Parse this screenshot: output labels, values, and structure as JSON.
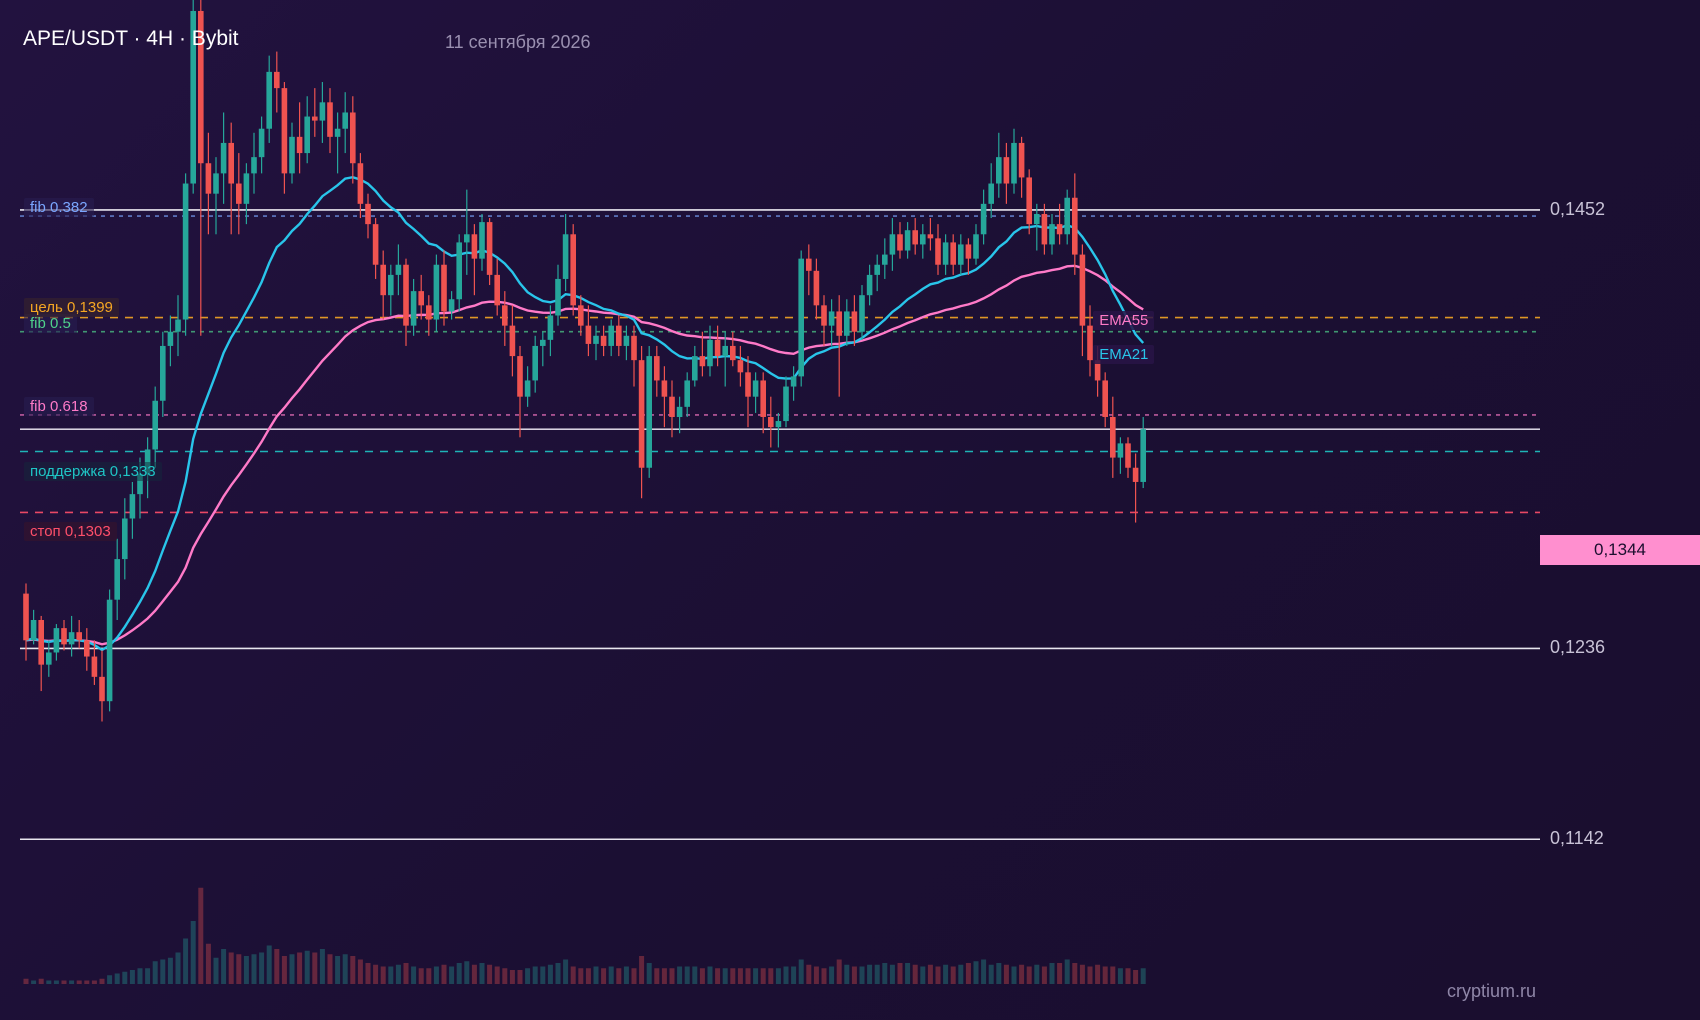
{
  "header": {
    "title": "APE/USDT · 4H · Bybit",
    "date": "11 сентября 2026"
  },
  "watermark": "cryptium.ru",
  "colors": {
    "up": "#26a69a",
    "down": "#ef5350",
    "ema_fast": "#29c5ea",
    "ema_slow": "#ff7ac8",
    "fib": "#7aa6ff",
    "target": "#f5a623",
    "support": "#1fc5c5",
    "stop": "#ff4f6a"
  },
  "chart_data": {
    "type": "candlestick",
    "title": "APE/USDT · 4H · Bybit",
    "ylim": [
      0.1117,
      0.1516
    ],
    "grid": false,
    "levels": [
      {
        "label": "0,1452",
        "value": 0.1452,
        "style": "solid"
      },
      {
        "label": "0,1236",
        "value": 0.1236,
        "style": "solid"
      },
      {
        "label": "0,1142",
        "value": 0.1142,
        "style": "solid"
      }
    ],
    "last_price": {
      "label": "0,1344",
      "value": 0.1344
    },
    "annotations": [
      {
        "label": "fib 0.382",
        "value": 0.1449,
        "kind": "fib"
      },
      {
        "label": "fib 0.5",
        "value": 0.1392,
        "kind": "fib"
      },
      {
        "label": "fib 0.618",
        "value": 0.1351,
        "kind": "fib"
      },
      {
        "label": "цель 0,1399",
        "value": 0.1399,
        "kind": "target"
      },
      {
        "label": "поддержка 0,1333",
        "value": 0.1333,
        "kind": "support"
      },
      {
        "label": "стоп 0,1303",
        "value": 0.1303,
        "kind": "stop"
      }
    ],
    "indicators": [
      {
        "name": "EMA21",
        "kind": "ema_fast"
      },
      {
        "name": "EMA55",
        "kind": "ema_slow"
      }
    ],
    "ohlc": [
      [
        0.1263,
        0.1268,
        0.123,
        0.124
      ],
      [
        0.124,
        0.1255,
        0.1238,
        0.125
      ],
      [
        0.125,
        0.1252,
        0.1215,
        0.1228
      ],
      [
        0.1228,
        0.124,
        0.1222,
        0.1234
      ],
      [
        0.1234,
        0.1248,
        0.123,
        0.1246
      ],
      [
        0.1246,
        0.125,
        0.1235,
        0.1238
      ],
      [
        0.1238,
        0.1252,
        0.1232,
        0.1244
      ],
      [
        0.1244,
        0.125,
        0.1236,
        0.124
      ],
      [
        0.124,
        0.1246,
        0.1225,
        0.1232
      ],
      [
        0.1232,
        0.124,
        0.1218,
        0.1222
      ],
      [
        0.1222,
        0.1235,
        0.12,
        0.121
      ],
      [
        0.121,
        0.1265,
        0.1205,
        0.126
      ],
      [
        0.126,
        0.129,
        0.125,
        0.128
      ],
      [
        0.128,
        0.131,
        0.127,
        0.13
      ],
      [
        0.13,
        0.1318,
        0.129,
        0.1312
      ],
      [
        0.1312,
        0.133,
        0.13,
        0.1322
      ],
      [
        0.1322,
        0.134,
        0.131,
        0.1334
      ],
      [
        0.1334,
        0.1365,
        0.1325,
        0.1358
      ],
      [
        0.1358,
        0.1392,
        0.135,
        0.1385
      ],
      [
        0.1385,
        0.14,
        0.1375,
        0.1392
      ],
      [
        0.1392,
        0.141,
        0.138,
        0.1398
      ],
      [
        0.1398,
        0.147,
        0.139,
        0.1465
      ],
      [
        0.1465,
        0.156,
        0.146,
        0.155
      ],
      [
        0.155,
        0.156,
        0.139,
        0.1475
      ],
      [
        0.1475,
        0.149,
        0.144,
        0.146
      ],
      [
        0.146,
        0.1478,
        0.144,
        0.147
      ],
      [
        0.147,
        0.15,
        0.1455,
        0.1485
      ],
      [
        0.1485,
        0.1495,
        0.144,
        0.1465
      ],
      [
        0.1465,
        0.148,
        0.144,
        0.1455
      ],
      [
        0.1455,
        0.1475,
        0.1445,
        0.147
      ],
      [
        0.147,
        0.149,
        0.146,
        0.1478
      ],
      [
        0.1478,
        0.1498,
        0.147,
        0.1492
      ],
      [
        0.1492,
        0.1528,
        0.1485,
        0.152
      ],
      [
        0.152,
        0.153,
        0.15,
        0.1512
      ],
      [
        0.1512,
        0.1515,
        0.146,
        0.147
      ],
      [
        0.147,
        0.1495,
        0.1465,
        0.1488
      ],
      [
        0.1488,
        0.1505,
        0.147,
        0.148
      ],
      [
        0.148,
        0.1508,
        0.1475,
        0.1498
      ],
      [
        0.1498,
        0.1512,
        0.1488,
        0.1496
      ],
      [
        0.1496,
        0.1515,
        0.1485,
        0.1505
      ],
      [
        0.1505,
        0.1512,
        0.148,
        0.1488
      ],
      [
        0.1488,
        0.15,
        0.147,
        0.1492
      ],
      [
        0.1492,
        0.151,
        0.148,
        0.15
      ],
      [
        0.15,
        0.1508,
        0.1465,
        0.1475
      ],
      [
        0.1475,
        0.148,
        0.1448,
        0.1455
      ],
      [
        0.1455,
        0.146,
        0.1438,
        0.1445
      ],
      [
        0.1445,
        0.1448,
        0.1418,
        0.1425
      ],
      [
        0.1425,
        0.1432,
        0.1398,
        0.141
      ],
      [
        0.141,
        0.1425,
        0.14,
        0.142
      ],
      [
        0.142,
        0.1435,
        0.141,
        0.1425
      ],
      [
        0.1425,
        0.1428,
        0.1385,
        0.1395
      ],
      [
        0.1395,
        0.1418,
        0.139,
        0.1412
      ],
      [
        0.1412,
        0.142,
        0.1398,
        0.1405
      ],
      [
        0.1405,
        0.141,
        0.139,
        0.1398
      ],
      [
        0.1398,
        0.143,
        0.1392,
        0.1425
      ],
      [
        0.1425,
        0.1432,
        0.1395,
        0.1402
      ],
      [
        0.1402,
        0.1412,
        0.1398,
        0.1408
      ],
      [
        0.1408,
        0.144,
        0.1402,
        0.1436
      ],
      [
        0.1436,
        0.1462,
        0.142,
        0.144
      ],
      [
        0.144,
        0.1445,
        0.141,
        0.1428
      ],
      [
        0.1428,
        0.145,
        0.1422,
        0.1446
      ],
      [
        0.1446,
        0.1448,
        0.1415,
        0.142
      ],
      [
        0.142,
        0.1428,
        0.14,
        0.1405
      ],
      [
        0.1405,
        0.1412,
        0.1385,
        0.1395
      ],
      [
        0.1395,
        0.1405,
        0.137,
        0.138
      ],
      [
        0.138,
        0.1385,
        0.134,
        0.136
      ],
      [
        0.136,
        0.1375,
        0.1355,
        0.1368
      ],
      [
        0.1368,
        0.139,
        0.1362,
        0.1385
      ],
      [
        0.1385,
        0.1392,
        0.1375,
        0.1388
      ],
      [
        0.1388,
        0.1405,
        0.138,
        0.14
      ],
      [
        0.14,
        0.1425,
        0.1395,
        0.1418
      ],
      [
        0.1418,
        0.145,
        0.1412,
        0.144
      ],
      [
        0.144,
        0.1445,
        0.14,
        0.1405
      ],
      [
        0.1405,
        0.141,
        0.139,
        0.1395
      ],
      [
        0.1395,
        0.1405,
        0.138,
        0.1386
      ],
      [
        0.1386,
        0.1395,
        0.1378,
        0.139
      ],
      [
        0.139,
        0.1395,
        0.138,
        0.1385
      ],
      [
        0.1385,
        0.1398,
        0.138,
        0.1395
      ],
      [
        0.1395,
        0.14,
        0.138,
        0.1385
      ],
      [
        0.1385,
        0.1395,
        0.1378,
        0.139
      ],
      [
        0.139,
        0.1395,
        0.1365,
        0.1378
      ],
      [
        0.1378,
        0.1385,
        0.131,
        0.1325
      ],
      [
        0.1325,
        0.1385,
        0.132,
        0.138
      ],
      [
        0.138,
        0.1385,
        0.136,
        0.1368
      ],
      [
        0.1368,
        0.1375,
        0.1345,
        0.136
      ],
      [
        0.136,
        0.1368,
        0.134,
        0.135
      ],
      [
        0.135,
        0.136,
        0.1342,
        0.1355
      ],
      [
        0.1355,
        0.1372,
        0.135,
        0.1368
      ],
      [
        0.1368,
        0.1385,
        0.1365,
        0.138
      ],
      [
        0.138,
        0.1392,
        0.137,
        0.1375
      ],
      [
        0.1375,
        0.1395,
        0.137,
        0.1388
      ],
      [
        0.1388,
        0.1395,
        0.1375,
        0.138
      ],
      [
        0.138,
        0.1392,
        0.1365,
        0.1385
      ],
      [
        0.1385,
        0.1392,
        0.1375,
        0.1378
      ],
      [
        0.1378,
        0.1385,
        0.1365,
        0.1372
      ],
      [
        0.1372,
        0.138,
        0.1345,
        0.136
      ],
      [
        0.136,
        0.1372,
        0.1352,
        0.1368
      ],
      [
        0.1368,
        0.1372,
        0.1342,
        0.135
      ],
      [
        0.135,
        0.136,
        0.1335,
        0.1345
      ],
      [
        0.1345,
        0.1352,
        0.1335,
        0.1348
      ],
      [
        0.1348,
        0.137,
        0.1345,
        0.1365
      ],
      [
        0.1365,
        0.1375,
        0.1358,
        0.137
      ],
      [
        0.137,
        0.1432,
        0.1365,
        0.1428
      ],
      [
        0.1428,
        0.1435,
        0.141,
        0.1422
      ],
      [
        0.1422,
        0.1428,
        0.1398,
        0.1405
      ],
      [
        0.1405,
        0.141,
        0.1385,
        0.1395
      ],
      [
        0.1395,
        0.1408,
        0.1385,
        0.1402
      ],
      [
        0.1402,
        0.141,
        0.136,
        0.139
      ],
      [
        0.139,
        0.1408,
        0.1385,
        0.1402
      ],
      [
        0.1402,
        0.141,
        0.1385,
        0.1392
      ],
      [
        0.1392,
        0.1415,
        0.1388,
        0.141
      ],
      [
        0.141,
        0.1425,
        0.1405,
        0.142
      ],
      [
        0.142,
        0.143,
        0.1412,
        0.1425
      ],
      [
        0.1425,
        0.1438,
        0.1418,
        0.143
      ],
      [
        0.143,
        0.1448,
        0.1422,
        0.144
      ],
      [
        0.144,
        0.1446,
        0.1428,
        0.1432
      ],
      [
        0.1432,
        0.1446,
        0.1428,
        0.1442
      ],
      [
        0.1442,
        0.1448,
        0.143,
        0.1435
      ],
      [
        0.1435,
        0.1445,
        0.1428,
        0.144
      ],
      [
        0.144,
        0.1448,
        0.1432,
        0.1438
      ],
      [
        0.1438,
        0.1445,
        0.142,
        0.1425
      ],
      [
        0.1425,
        0.144,
        0.142,
        0.1436
      ],
      [
        0.1436,
        0.144,
        0.142,
        0.1425
      ],
      [
        0.1425,
        0.144,
        0.142,
        0.1435
      ],
      [
        0.1435,
        0.1438,
        0.142,
        0.1428
      ],
      [
        0.1428,
        0.1445,
        0.1425,
        0.144
      ],
      [
        0.144,
        0.1462,
        0.1435,
        0.1455
      ],
      [
        0.1455,
        0.1475,
        0.1448,
        0.1465
      ],
      [
        0.1465,
        0.149,
        0.1458,
        0.1478
      ],
      [
        0.1478,
        0.1485,
        0.1455,
        0.1465
      ],
      [
        0.1465,
        0.1492,
        0.146,
        0.1485
      ],
      [
        0.1485,
        0.1488,
        0.1458,
        0.1468
      ],
      [
        0.1468,
        0.1472,
        0.144,
        0.1445
      ],
      [
        0.1445,
        0.1455,
        0.1432,
        0.145
      ],
      [
        0.145,
        0.1455,
        0.143,
        0.1435
      ],
      [
        0.1435,
        0.145,
        0.143,
        0.1445
      ],
      [
        0.1445,
        0.1455,
        0.1435,
        0.144
      ],
      [
        0.144,
        0.1462,
        0.1435,
        0.1458
      ],
      [
        0.1458,
        0.147,
        0.142,
        0.143
      ],
      [
        0.143,
        0.1435,
        0.138,
        0.1395
      ],
      [
        0.1395,
        0.1405,
        0.137,
        0.1378
      ],
      [
        0.1378,
        0.1385,
        0.136,
        0.1368
      ],
      [
        0.1368,
        0.1372,
        0.1345,
        0.135
      ],
      [
        0.135,
        0.136,
        0.132,
        0.133
      ],
      [
        0.133,
        0.134,
        0.1322,
        0.1337
      ],
      [
        0.1337,
        0.134,
        0.132,
        0.1325
      ],
      [
        0.1325,
        0.1332,
        0.1298,
        0.1318
      ],
      [
        0.1318,
        0.135,
        0.1315,
        0.1344
      ]
    ],
    "volume": [
      3,
      2,
      3,
      2,
      2,
      2,
      2,
      2,
      2,
      2,
      3,
      5,
      6,
      7,
      8,
      9,
      9,
      13,
      14,
      15,
      18,
      26,
      36,
      55,
      23,
      15,
      20,
      18,
      17,
      16,
      17,
      18,
      22,
      20,
      16,
      17,
      18,
      19,
      18,
      20,
      17,
      16,
      17,
      16,
      14,
      12,
      11,
      10,
      10,
      11,
      12,
      10,
      9,
      9,
      10,
      11,
      10,
      12,
      13,
      11,
      12,
      11,
      10,
      9,
      8,
      8,
      9,
      10,
      10,
      11,
      12,
      14,
      10,
      9,
      9,
      10,
      9,
      10,
      9,
      10,
      9,
      16,
      12,
      9,
      9,
      9,
      10,
      10,
      10,
      9,
      10,
      9,
      9,
      9,
      9,
      9,
      9,
      9,
      9,
      9,
      10,
      10,
      14,
      11,
      10,
      9,
      10,
      14,
      11,
      10,
      10,
      11,
      11,
      12,
      11,
      12,
      12,
      11,
      10,
      11,
      10,
      11,
      10,
      11,
      12,
      13,
      14,
      11,
      12,
      11,
      10,
      11,
      10,
      11,
      10,
      12,
      12,
      14,
      12,
      11,
      10,
      11,
      10,
      10,
      9,
      9,
      8,
      9
    ]
  }
}
